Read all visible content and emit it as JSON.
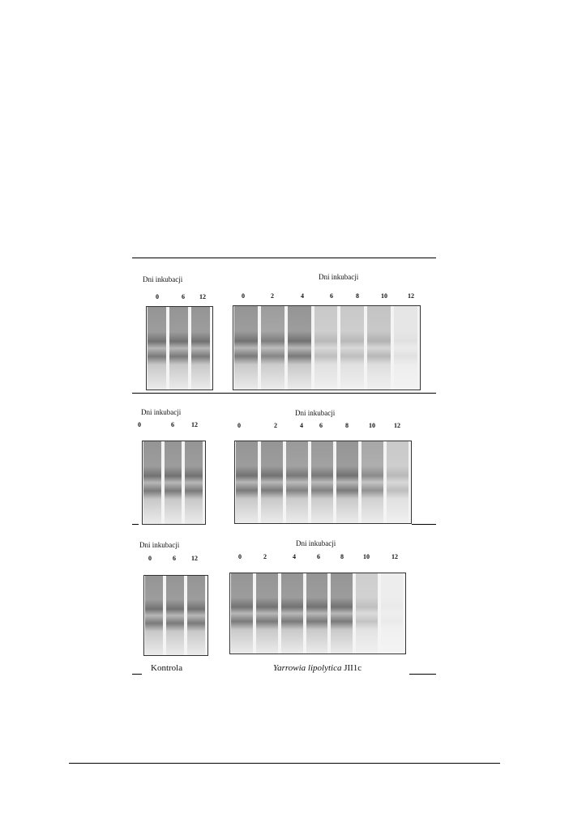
{
  "figure": {
    "panels": [
      {
        "control": {
          "label": "Dni inkubacji",
          "lanes": [
            "0",
            "6",
            "12"
          ]
        },
        "sample": {
          "label": "Dni inkubacji",
          "lanes": [
            "0",
            "2",
            "4",
            "6",
            "8",
            "10",
            "12"
          ]
        }
      },
      {
        "control": {
          "label": "Dni inkubacji",
          "lanes": [
            "0",
            "6",
            "12"
          ]
        },
        "sample": {
          "label": "Dni inkubacji",
          "lanes": [
            "0",
            "2",
            "4",
            "6",
            "8",
            "10",
            "12"
          ]
        }
      },
      {
        "control": {
          "label": "Dni inkubacji",
          "lanes": [
            "0",
            "6",
            "12"
          ]
        },
        "sample": {
          "label": "Dni inkubacji",
          "lanes": [
            "0",
            "2",
            "4",
            "6",
            "8",
            "10",
            "12"
          ]
        }
      }
    ],
    "caption_control": "Kontrola",
    "caption_sample_species": "Yarrowia lipolytica",
    "caption_sample_strain": "JII1c"
  }
}
